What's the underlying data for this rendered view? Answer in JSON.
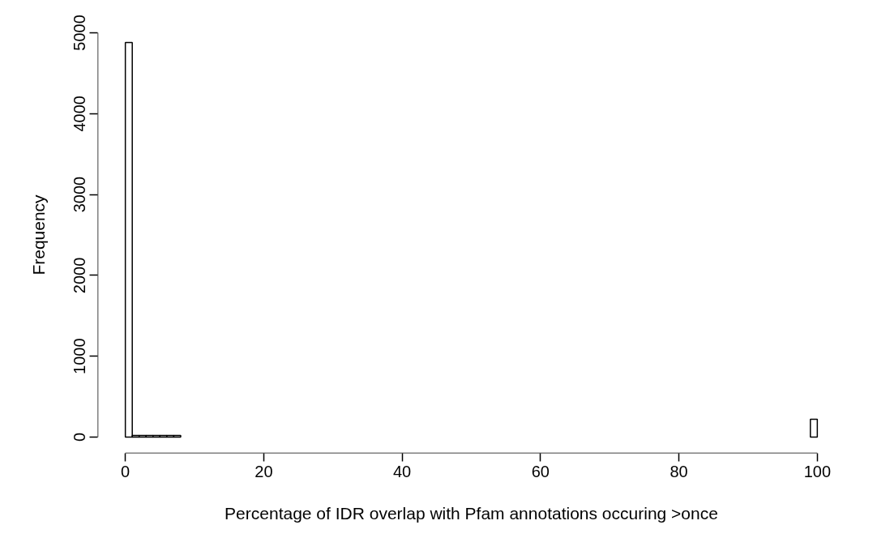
{
  "chart_data": {
    "type": "histogram",
    "xlabel": "Percentage of IDR overlap with Pfam annotations occuring >once",
    "ylabel": "Frequency",
    "bins": [
      0,
      1,
      2,
      3,
      4,
      5,
      6,
      7,
      8,
      9,
      10,
      11,
      12,
      13,
      14,
      15,
      16,
      17,
      18,
      19,
      20,
      21,
      22,
      23,
      24,
      25,
      26,
      27,
      28,
      29,
      30,
      31,
      32,
      33,
      34,
      35,
      36,
      37,
      38,
      39,
      40,
      41,
      42,
      43,
      44,
      45,
      46,
      47,
      48,
      49,
      50,
      51,
      52,
      53,
      54,
      55,
      56,
      57,
      58,
      59,
      60,
      61,
      62,
      63,
      64,
      65,
      66,
      67,
      68,
      69,
      70,
      71,
      72,
      73,
      74,
      75,
      76,
      77,
      78,
      79,
      80,
      81,
      82,
      83,
      84,
      85,
      86,
      87,
      88,
      89,
      90,
      91,
      92,
      93,
      94,
      95,
      96,
      97,
      98,
      99,
      100
    ],
    "values": [
      4880,
      20,
      20,
      20,
      20,
      20,
      20,
      20,
      0,
      0,
      0,
      0,
      0,
      0,
      0,
      0,
      0,
      0,
      0,
      0,
      0,
      0,
      0,
      0,
      0,
      0,
      0,
      0,
      0,
      0,
      0,
      0,
      0,
      0,
      0,
      0,
      0,
      0,
      0,
      0,
      0,
      0,
      0,
      0,
      0,
      0,
      0,
      0,
      0,
      0,
      0,
      0,
      0,
      0,
      0,
      0,
      0,
      0,
      0,
      0,
      0,
      0,
      0,
      0,
      0,
      0,
      0,
      0,
      0,
      0,
      0,
      0,
      0,
      0,
      0,
      0,
      0,
      0,
      0,
      0,
      0,
      0,
      0,
      0,
      0,
      0,
      0,
      0,
      0,
      0,
      0,
      0,
      0,
      0,
      0,
      0,
      0,
      0,
      0,
      220
    ],
    "color": "#ffffff",
    "xlim": [
      0,
      100
    ],
    "ylim": [
      0,
      5000
    ],
    "xticks": [
      0,
      20,
      40,
      60,
      80,
      100
    ],
    "yticks": [
      0,
      1000,
      2000,
      3000,
      4000,
      5000
    ],
    "grid": false
  }
}
